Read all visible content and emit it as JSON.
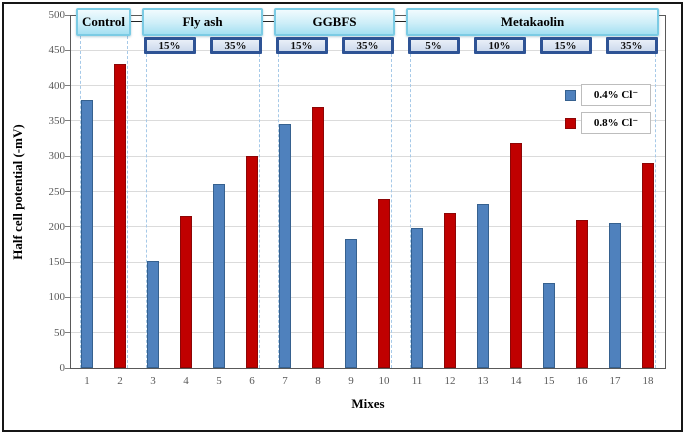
{
  "chart_data": {
    "type": "bar",
    "title": "",
    "xlabel": "Mixes",
    "ylabel": "Half cell potential (-mV)",
    "ylim": [
      0,
      500
    ],
    "ytick_step": 50,
    "grid": true,
    "legend_position": "inside-right",
    "series": [
      {
        "name": "0.4% Cl⁻",
        "color": "#4f81bd",
        "border": "#36618f"
      },
      {
        "name": "0.8% Cl⁻",
        "color": "#c00000",
        "border": "#8d0606"
      }
    ],
    "bars": [
      {
        "mix": "1",
        "value": 380,
        "series": 0
      },
      {
        "mix": "2",
        "value": 430,
        "series": 1
      },
      {
        "mix": "3",
        "value": 152,
        "series": 0
      },
      {
        "mix": "4",
        "value": 215,
        "series": 1
      },
      {
        "mix": "5",
        "value": 260,
        "series": 0
      },
      {
        "mix": "6",
        "value": 300,
        "series": 1
      },
      {
        "mix": "7",
        "value": 345,
        "series": 0
      },
      {
        "mix": "8",
        "value": 370,
        "series": 1
      },
      {
        "mix": "9",
        "value": 183,
        "series": 0
      },
      {
        "mix": "10",
        "value": 240,
        "series": 1
      },
      {
        "mix": "11",
        "value": 198,
        "series": 0
      },
      {
        "mix": "12",
        "value": 220,
        "series": 1
      },
      {
        "mix": "13",
        "value": 233,
        "series": 0
      },
      {
        "mix": "14",
        "value": 318,
        "series": 1
      },
      {
        "mix": "15",
        "value": 120,
        "series": 0
      },
      {
        "mix": "16",
        "value": 210,
        "series": 1
      },
      {
        "mix": "17",
        "value": 205,
        "series": 0
      },
      {
        "mix": "18",
        "value": 290,
        "series": 1
      }
    ],
    "groups": [
      {
        "label": "Control",
        "from": 1,
        "to": 2,
        "subs": []
      },
      {
        "label": "Fly ash",
        "from": 3,
        "to": 6,
        "subs": [
          {
            "label": "15%",
            "from": 3,
            "to": 4
          },
          {
            "label": "35%",
            "from": 5,
            "to": 6
          }
        ]
      },
      {
        "label": "GGBFS",
        "from": 7,
        "to": 10,
        "subs": [
          {
            "label": "15%",
            "from": 7,
            "to": 8
          },
          {
            "label": "35%",
            "from": 9,
            "to": 10
          }
        ]
      },
      {
        "label": "Metakaolin",
        "from": 11,
        "to": 18,
        "subs": [
          {
            "label": "5%",
            "from": 11,
            "to": 12
          },
          {
            "label": "10%",
            "from": 13,
            "to": 14
          },
          {
            "label": "15%",
            "from": 15,
            "to": 16
          },
          {
            "label": "35%",
            "from": 17,
            "to": 18
          }
        ]
      }
    ]
  }
}
